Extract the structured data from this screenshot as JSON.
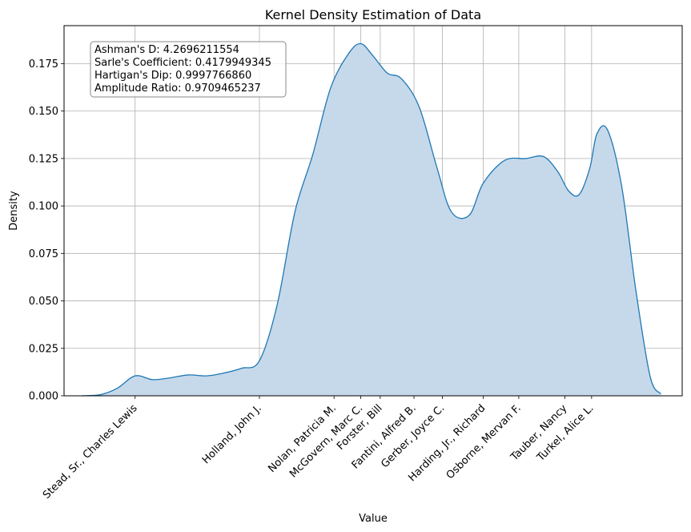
{
  "chart_data": {
    "type": "area",
    "title": "Kernel Density Estimation of Data",
    "xlabel": "Value",
    "ylabel": "Density",
    "ylim": [
      0,
      0.195
    ],
    "y_ticks": [
      "0.000",
      "0.025",
      "0.050",
      "0.075",
      "0.100",
      "0.125",
      "0.150",
      "0.175"
    ],
    "grid": true,
    "x_tick_labels": [
      "Stead, Sr., Charles Lewis",
      "Holland, John J.",
      "Nolan, Patricia M.",
      "McGovern, Marc C.",
      "Forster, Bill",
      "Fantini, Alfred B.",
      "Gerber, Joyce C.",
      "Harding, Jr., Richard",
      "Osborne, Mervan F.",
      "Tauber, Nancy",
      "Turkel, Alice L."
    ],
    "x_tick_positions": [
      -3.5,
      0.0,
      2.1,
      2.85,
      3.4,
      4.35,
      5.15,
      6.3,
      7.3,
      8.6,
      9.35
    ],
    "xlim": [
      -5.5,
      11.9
    ],
    "density_curve": {
      "x": [
        -5.0,
        -4.5,
        -4.0,
        -3.5,
        -3.0,
        -2.5,
        -2.0,
        -1.5,
        -1.0,
        -0.5,
        0.0,
        0.5,
        1.0,
        1.5,
        2.0,
        2.5,
        2.85,
        3.2,
        3.6,
        4.0,
        4.5,
        5.0,
        5.4,
        5.9,
        6.3,
        6.9,
        7.5,
        8.0,
        8.4,
        8.7,
        9.0,
        9.3,
        9.5,
        9.8,
        10.2,
        10.6,
        11.0,
        11.3
      ],
      "y": [
        0.0,
        0.0005,
        0.004,
        0.0105,
        0.0085,
        0.0095,
        0.011,
        0.0105,
        0.012,
        0.0145,
        0.0185,
        0.048,
        0.097,
        0.127,
        0.162,
        0.18,
        0.1855,
        0.179,
        0.17,
        0.167,
        0.152,
        0.12,
        0.097,
        0.095,
        0.112,
        0.124,
        0.125,
        0.126,
        0.118,
        0.108,
        0.106,
        0.12,
        0.138,
        0.14,
        0.11,
        0.055,
        0.01,
        0.001
      ]
    },
    "series": [
      {
        "color": "#1f77b4",
        "fill": "#c5d9eb"
      }
    ]
  },
  "stats": {
    "lines": [
      "Ashman's D: 4.2696211554",
      "Sarle's Coefficient: 0.4179949345",
      "Hartigan's Dip: 0.9997766860",
      "Amplitude Ratio: 0.9709465237"
    ]
  }
}
